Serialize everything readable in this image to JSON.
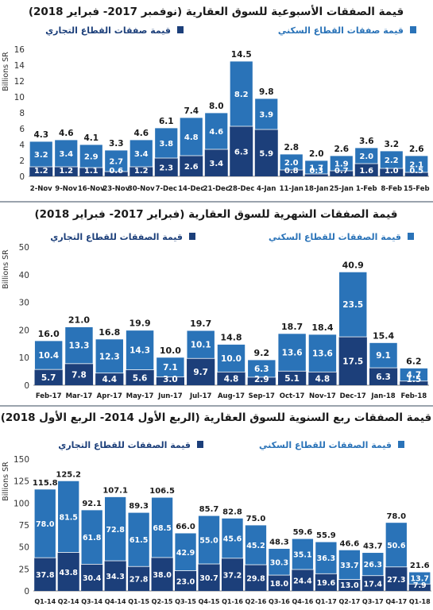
{
  "chart_data": [
    {
      "type": "bar",
      "stacked": true,
      "title": "قيمة الصفقات الأسبوعية للسوق العقارية (نوفمبر 2017- فبراير 2018)",
      "ylabel": "Billions SR",
      "ylim": [
        0,
        16
      ],
      "yticks": [
        "0",
        "2",
        "4",
        "6",
        "8",
        "10",
        "12",
        "14",
        "16"
      ],
      "categories": [
        "2-Nov",
        "9-Nov",
        "16-Nov",
        "23-Nov",
        "30-Nov",
        "7-Dec",
        "14-Dec",
        "21-Dec",
        "28-Dec",
        "4-Jan",
        "11-Jan",
        "18-Jan",
        "25-Jan",
        "1-Feb",
        "8-Feb",
        "15-Feb"
      ],
      "totals": [
        4.3,
        4.6,
        4.1,
        3.3,
        4.6,
        6.1,
        7.4,
        8.0,
        14.5,
        9.8,
        2.8,
        2.0,
        2.6,
        3.6,
        3.2,
        2.6
      ],
      "series": [
        {
          "name": "قيمة صفقات القطاع التجاري",
          "color": "#1c3f7a",
          "values": [
            1.2,
            1.2,
            1.1,
            0.6,
            1.2,
            2.3,
            2.6,
            3.4,
            6.3,
            5.9,
            0.8,
            0.3,
            0.7,
            1.6,
            1.0,
            0.5
          ]
        },
        {
          "name": "قيمة صفقات القطاع السكني",
          "color": "#2a73b8",
          "values": [
            3.2,
            3.4,
            2.9,
            2.7,
            3.4,
            3.8,
            4.8,
            4.6,
            8.2,
            3.9,
            2.0,
            1.7,
            1.9,
            2.0,
            2.2,
            2.1
          ]
        }
      ],
      "grid": false,
      "legend_placement": "top"
    },
    {
      "type": "bar",
      "stacked": true,
      "title": "قيمة الصفقات الشهرية للسوق العقارية (فبراير 2017- فبراير 2018)",
      "ylabel": "Billions SR",
      "ylim": [
        0,
        50
      ],
      "yticks": [
        "0",
        "10",
        "20",
        "30",
        "40",
        "50"
      ],
      "categories": [
        "Feb-17",
        "Mar-17",
        "Apr-17",
        "May-17",
        "Jun-17",
        "Jul-17",
        "Aug-17",
        "Sep-17",
        "Oct-17",
        "Nov-17",
        "Dec-17",
        "Jan-18",
        "Feb-18"
      ],
      "totals": [
        16.0,
        21.0,
        16.8,
        19.9,
        10.0,
        19.7,
        14.8,
        9.2,
        18.7,
        18.4,
        40.9,
        15.4,
        6.2
      ],
      "series": [
        {
          "name": "قيمة الصفقات للقطاع التجاري",
          "color": "#1c3f7a",
          "values": [
            5.7,
            7.8,
            4.4,
            5.6,
            3.0,
            9.7,
            4.8,
            2.9,
            5.1,
            4.8,
            17.5,
            6.3,
            1.5
          ]
        },
        {
          "name": "قيمة الصفقات للقطاع السكني",
          "color": "#2a73b8",
          "values": [
            10.4,
            13.3,
            12.3,
            14.3,
            7.1,
            10.1,
            10.0,
            6.3,
            13.6,
            13.6,
            23.5,
            9.1,
            4.7
          ]
        }
      ],
      "grid": false,
      "legend_placement": "top"
    },
    {
      "type": "bar",
      "stacked": true,
      "title": "قيمة الصفقات ربع السنوية للسوق العقارية (الربع الأول 2014- الربع الأول 2018)",
      "ylabel": "Billions SR",
      "ylim": [
        0,
        150
      ],
      "yticks": [
        "0",
        "25",
        "50",
        "75",
        "100",
        "125",
        "150"
      ],
      "categories": [
        "Q1-14",
        "Q2-14",
        "Q3-14",
        "Q4-14",
        "Q1-15",
        "Q2-15",
        "Q3-15",
        "Q4-15",
        "Q1-16",
        "Q2-16",
        "Q3-16",
        "Q4-16",
        "Q1-17",
        "Q2-17",
        "Q3-17",
        "Q4-17",
        "Q1-18"
      ],
      "totals": [
        115.8,
        125.2,
        92.1,
        107.1,
        89.3,
        106.5,
        66.0,
        85.7,
        82.8,
        75.0,
        48.3,
        59.6,
        55.9,
        46.6,
        43.7,
        78.0,
        21.6
      ],
      "series": [
        {
          "name": "قيمة الصفقات للقطاع التجاري",
          "color": "#1c3f7a",
          "values": [
            37.8,
            43.8,
            30.4,
            34.3,
            27.8,
            38.0,
            23.0,
            30.7,
            37.2,
            29.8,
            18.0,
            24.4,
            19.6,
            13.0,
            17.4,
            27.3,
            7.9
          ]
        },
        {
          "name": "قيمة الصفقات للقطاع السكني",
          "color": "#2a73b8",
          "values": [
            78.0,
            81.5,
            61.8,
            72.8,
            61.5,
            68.5,
            42.9,
            55.0,
            45.6,
            45.2,
            30.3,
            35.1,
            36.3,
            33.7,
            26.3,
            50.6,
            13.7
          ]
        }
      ],
      "grid": false,
      "legend_placement": "top"
    }
  ]
}
